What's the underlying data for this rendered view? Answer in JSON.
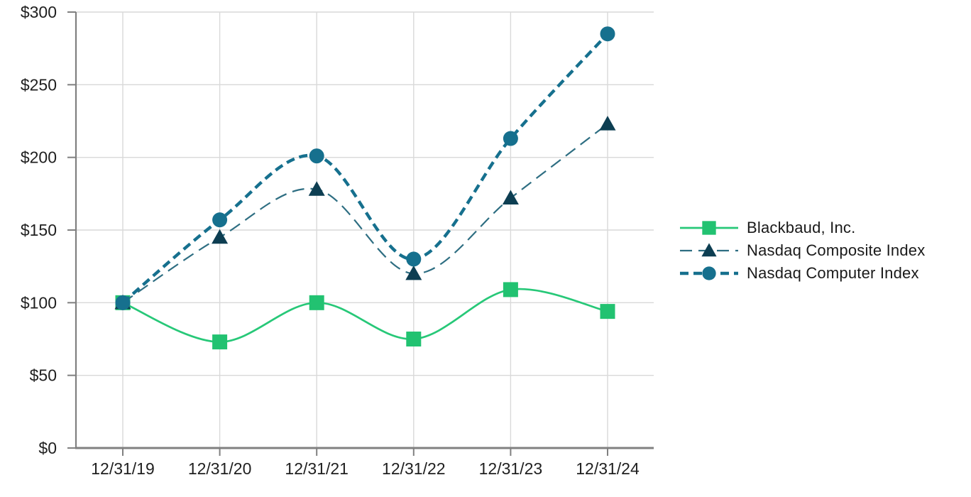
{
  "chart_data": {
    "type": "line",
    "title": "",
    "xlabel": "",
    "ylabel": "",
    "categories": [
      "12/31/19",
      "12/31/20",
      "12/31/21",
      "12/31/22",
      "12/31/23",
      "12/31/24"
    ],
    "series": [
      {
        "name": "Blackbaud, Inc.",
        "values": [
          100,
          73,
          100,
          75,
          109,
          94
        ],
        "color": "#27C878",
        "marker": "square",
        "marker_color": "#22C271",
        "dash": "",
        "width": 2.7
      },
      {
        "name": "Nasdaq Composite Index",
        "values": [
          100,
          145,
          178,
          120,
          172,
          223
        ],
        "color": "#2E6E82",
        "marker": "triangle",
        "marker_color": "#0D3E52",
        "dash": "17 9",
        "width": 2.2
      },
      {
        "name": "Nasdaq Computer Index",
        "values": [
          100,
          157,
          201,
          130,
          213,
          285
        ],
        "color": "#16708E",
        "marker": "circle",
        "marker_color": "#16708E",
        "dash": "12 7",
        "width": 4.4
      }
    ],
    "y_ticks": [
      0,
      50,
      100,
      150,
      200,
      250,
      300
    ],
    "y_tick_labels": [
      "$0",
      "$50",
      "$100",
      "$150",
      "$200",
      "$250",
      "$300"
    ],
    "ylim": [
      0,
      300
    ],
    "grid": true,
    "legend_position": "right",
    "line_smoothing": true,
    "grid_color": "#D9D9D9",
    "axis_color": "#808080",
    "text_color": "#1F1F1F"
  }
}
